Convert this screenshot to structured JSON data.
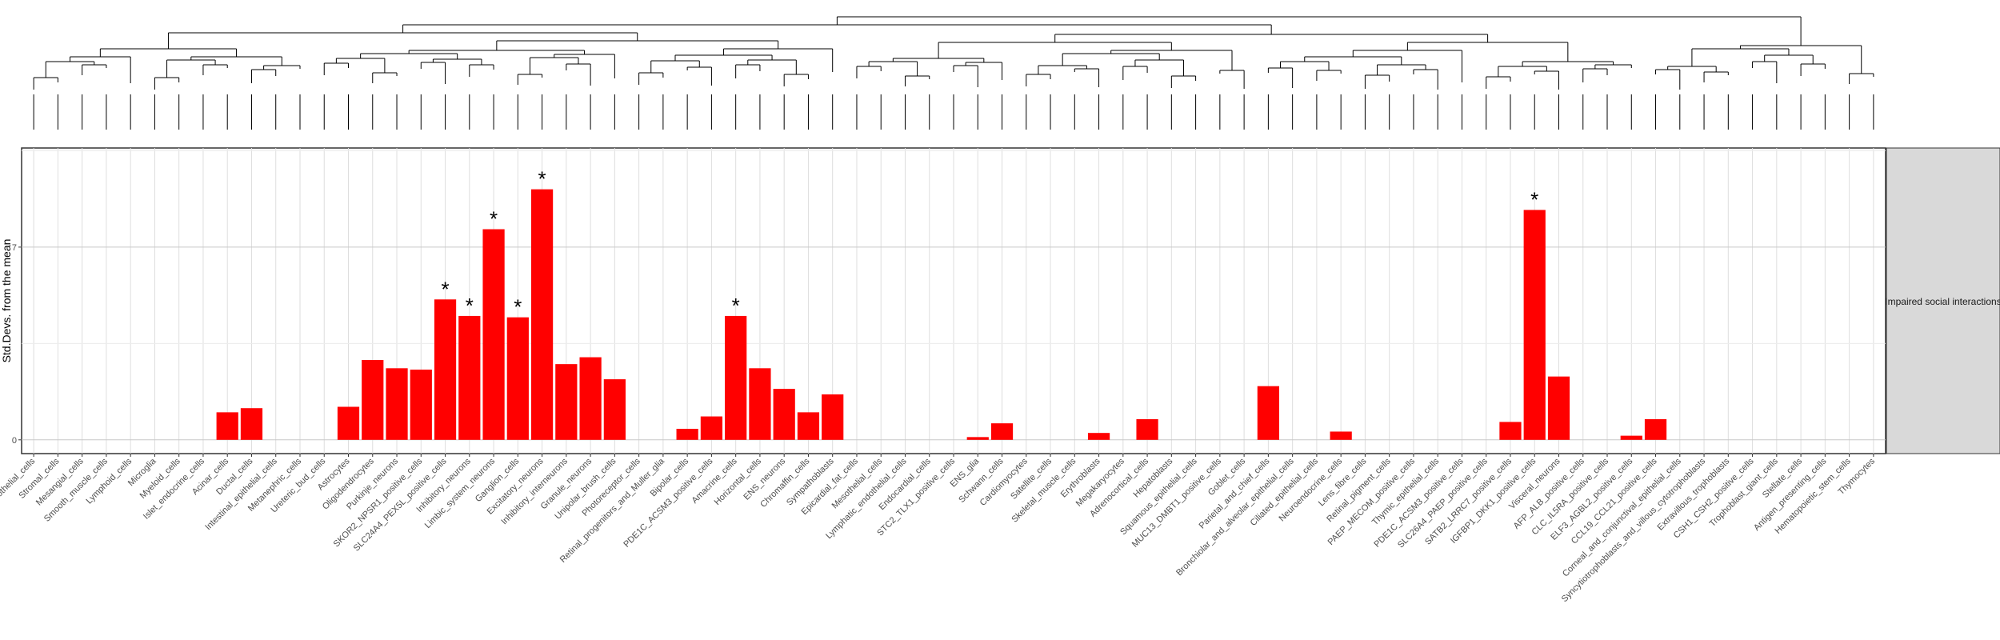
{
  "chart_data": {
    "type": "bar",
    "ylabel": "Std.Devs. from the mean",
    "facet_label": "Impaired social interactions",
    "y_ticks": [
      "0",
      "7"
    ],
    "ylim": [
      -0.5,
      10.6
    ],
    "grid": true,
    "bar_color": "#ff0000",
    "significance_marker": "*",
    "categories": [
      "Vascular_endothelial_cells",
      "Stromal_cells",
      "Mesangial_cells",
      "Smooth_muscle_cells",
      "Lymphoid_cells",
      "Microglia",
      "Myeloid_cells",
      "Islet_endocrine_cells",
      "Acinar_cells",
      "Ductal_cells",
      "Intestinal_epithelial_cells",
      "Metanephric_cells",
      "Ureteric_bud_cells",
      "Astrocytes",
      "Oligodendrocytes",
      "Purkinje_neurons",
      "SKOR2_NPSR1_positive_cells",
      "SLC24A4_PEX5L_positive_cells",
      "Inhibitory_neurons",
      "Limbic_system_neurons",
      "Ganglion_cells",
      "Excitatory_neurons",
      "Inhibitory_interneurons",
      "Granule_neurons",
      "Unipolar_brush_cells",
      "Photoreceptor_cells",
      "Retinal_progenitors_and_Muller_glia",
      "Bipolar_cells",
      "PDE1C_ACSM3_positive_cells",
      "Amacrine_cells",
      "Horizontal_cells",
      "ENS_neurons",
      "Chromaffin_cells",
      "Sympathoblasts",
      "Epicardial_fat_cells",
      "Mesothelial_cells",
      "Lymphatic_endothelial_cells",
      "Endocardial_cells",
      "STC2_TLX1_positive_cells",
      "ENS_glia",
      "Schwann_cells",
      "Cardiomyocytes",
      "Satellite_cells",
      "Skeletal_muscle_cells",
      "Erythroblasts",
      "Megakaryocytes",
      "Adrenocortical_cells",
      "Hepatoblasts",
      "Squamous_epithelial_cells",
      "MUC13_DMBT1_positive_cells",
      "Goblet_cells",
      "Parietal_and_chief_cells",
      "Bronchiolar_and_alveolar_epithelial_cells",
      "Ciliated_epithelial_cells",
      "Neuroendocrine_cells",
      "Lens_fibre_cells",
      "Retinal_pigment_cells",
      "PAEP_MECOM_positive_cells",
      "Thymic_epithelial_cells",
      "PDE1C_ACSM3_positive_cells",
      "SLC26A4_PAEP_positive_cells",
      "SATB2_LRRC7_positive_cells",
      "IGFBP1_DKK1_positive_cells",
      "Visceral_neurons",
      "AFP_ALB_positive_cells",
      "CLC_IL5RA_positive_cells",
      "ELF3_AGBL2_positive_cells",
      "CCL19_CCL21_positive_cells",
      "Corneal_and_conjunctival_epithelial_cells",
      "Syncytiotrophoblasts_and_villous_cytotrophoblasts",
      "Extravillous_trophoblasts",
      "CSH1_CSH2_positive_cells",
      "Trophoblast_giant_cells",
      "Stellate_cells",
      "Antigen_presenting_cells",
      "Hematopoietic_stem_cells",
      "Thymocytes"
    ],
    "values": [
      0,
      0,
      0,
      0,
      0,
      0,
      0,
      0,
      1.0,
      1.15,
      0,
      0,
      0,
      1.2,
      2.9,
      2.6,
      2.55,
      5.1,
      4.5,
      7.65,
      4.45,
      9.1,
      2.75,
      3.0,
      2.2,
      0,
      0,
      0.4,
      0.85,
      4.5,
      2.6,
      1.85,
      1.0,
      1.65,
      0,
      0,
      0,
      0,
      0,
      0.1,
      0.6,
      0,
      0,
      0,
      0.25,
      0,
      0.75,
      0,
      0,
      0,
      0,
      1.95,
      0,
      0,
      0.3,
      0,
      0,
      0,
      0,
      0,
      0,
      0.65,
      8.35,
      2.3,
      0,
      0,
      0.15,
      0.75,
      0,
      0,
      0,
      0,
      0,
      0,
      0,
      0,
      0
    ],
    "significant": [
      17,
      18,
      19,
      20,
      21,
      29,
      62
    ]
  }
}
